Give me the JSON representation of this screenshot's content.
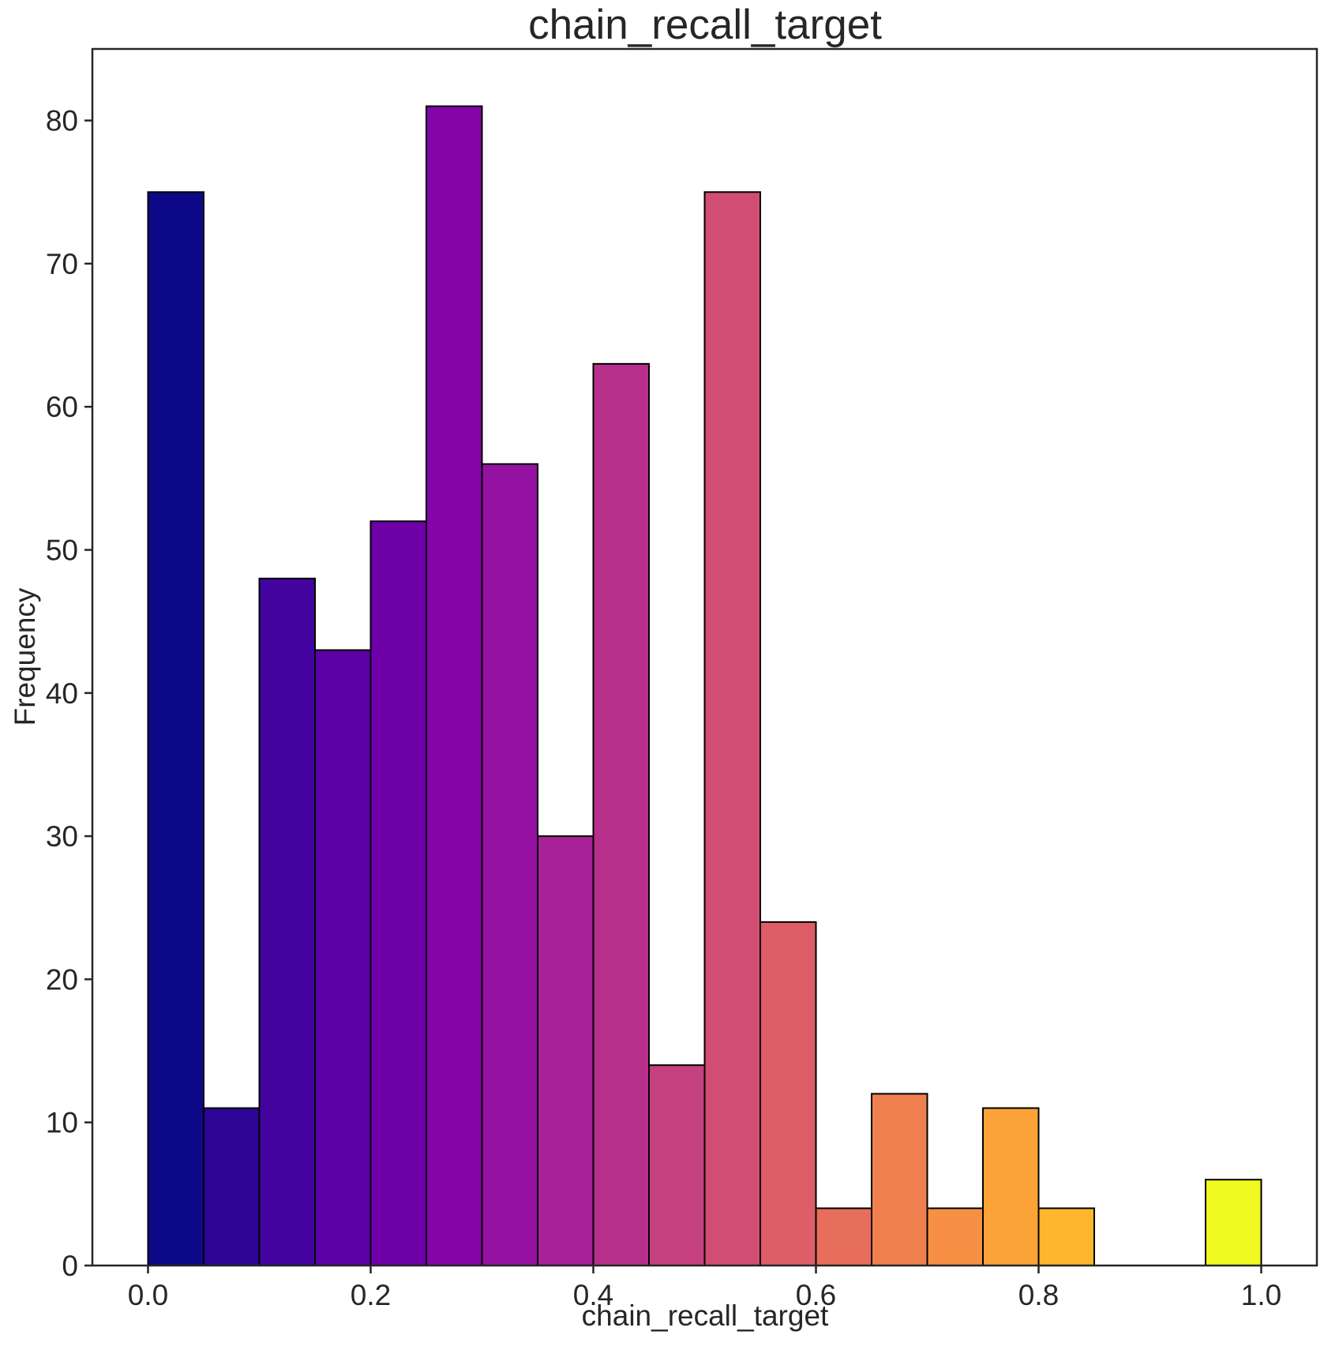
{
  "chart_data": {
    "type": "bar",
    "title": "chain_recall_target",
    "xlabel": "chain_recall_target",
    "ylabel": "Frequency",
    "xlim": [
      -0.05,
      1.05
    ],
    "ylim": [
      0,
      85
    ],
    "xticks": [
      0.0,
      0.2,
      0.4,
      0.6,
      0.8,
      1.0
    ],
    "xtick_labels": [
      "0.0",
      "0.2",
      "0.4",
      "0.6",
      "0.8",
      "1.0"
    ],
    "yticks": [
      0,
      10,
      20,
      30,
      40,
      50,
      60,
      70,
      80
    ],
    "ytick_labels": [
      "0",
      "10",
      "20",
      "30",
      "40",
      "50",
      "60",
      "70",
      "80"
    ],
    "grid": false,
    "bin_width": 0.05,
    "bins": [
      {
        "start": 0.0,
        "end": 0.05,
        "count": 75,
        "color": "#0d0887"
      },
      {
        "start": 0.05,
        "end": 0.1,
        "count": 11,
        "color": "#2c0594"
      },
      {
        "start": 0.1,
        "end": 0.15,
        "count": 48,
        "color": "#43039e"
      },
      {
        "start": 0.15,
        "end": 0.2,
        "count": 43,
        "color": "#5901a5"
      },
      {
        "start": 0.2,
        "end": 0.25,
        "count": 52,
        "color": "#6e00a8"
      },
      {
        "start": 0.25,
        "end": 0.3,
        "count": 81,
        "color": "#8405a7"
      },
      {
        "start": 0.3,
        "end": 0.35,
        "count": 56,
        "color": "#9511a1"
      },
      {
        "start": 0.35,
        "end": 0.4,
        "count": 30,
        "color": "#a72197"
      },
      {
        "start": 0.4,
        "end": 0.45,
        "count": 63,
        "color": "#b6308b"
      },
      {
        "start": 0.45,
        "end": 0.5,
        "count": 14,
        "color": "#c5407e"
      },
      {
        "start": 0.5,
        "end": 0.55,
        "count": 75,
        "color": "#d14e72"
      },
      {
        "start": 0.55,
        "end": 0.6,
        "count": 24,
        "color": "#dd5e66"
      },
      {
        "start": 0.6,
        "end": 0.65,
        "count": 4,
        "color": "#e76e5b"
      },
      {
        "start": 0.65,
        "end": 0.7,
        "count": 12,
        "color": "#f07f4f"
      },
      {
        "start": 0.7,
        "end": 0.75,
        "count": 4,
        "color": "#f79044"
      },
      {
        "start": 0.75,
        "end": 0.8,
        "count": 11,
        "color": "#fca338"
      },
      {
        "start": 0.8,
        "end": 0.85,
        "count": 4,
        "color": "#feb72d"
      },
      {
        "start": 0.85,
        "end": 0.9,
        "count": 0,
        "color": "#fccd25"
      },
      {
        "start": 0.9,
        "end": 0.95,
        "count": 0,
        "color": "#f7e225"
      },
      {
        "start": 0.95,
        "end": 1.0,
        "count": 6,
        "color": "#f0f921"
      }
    ]
  }
}
